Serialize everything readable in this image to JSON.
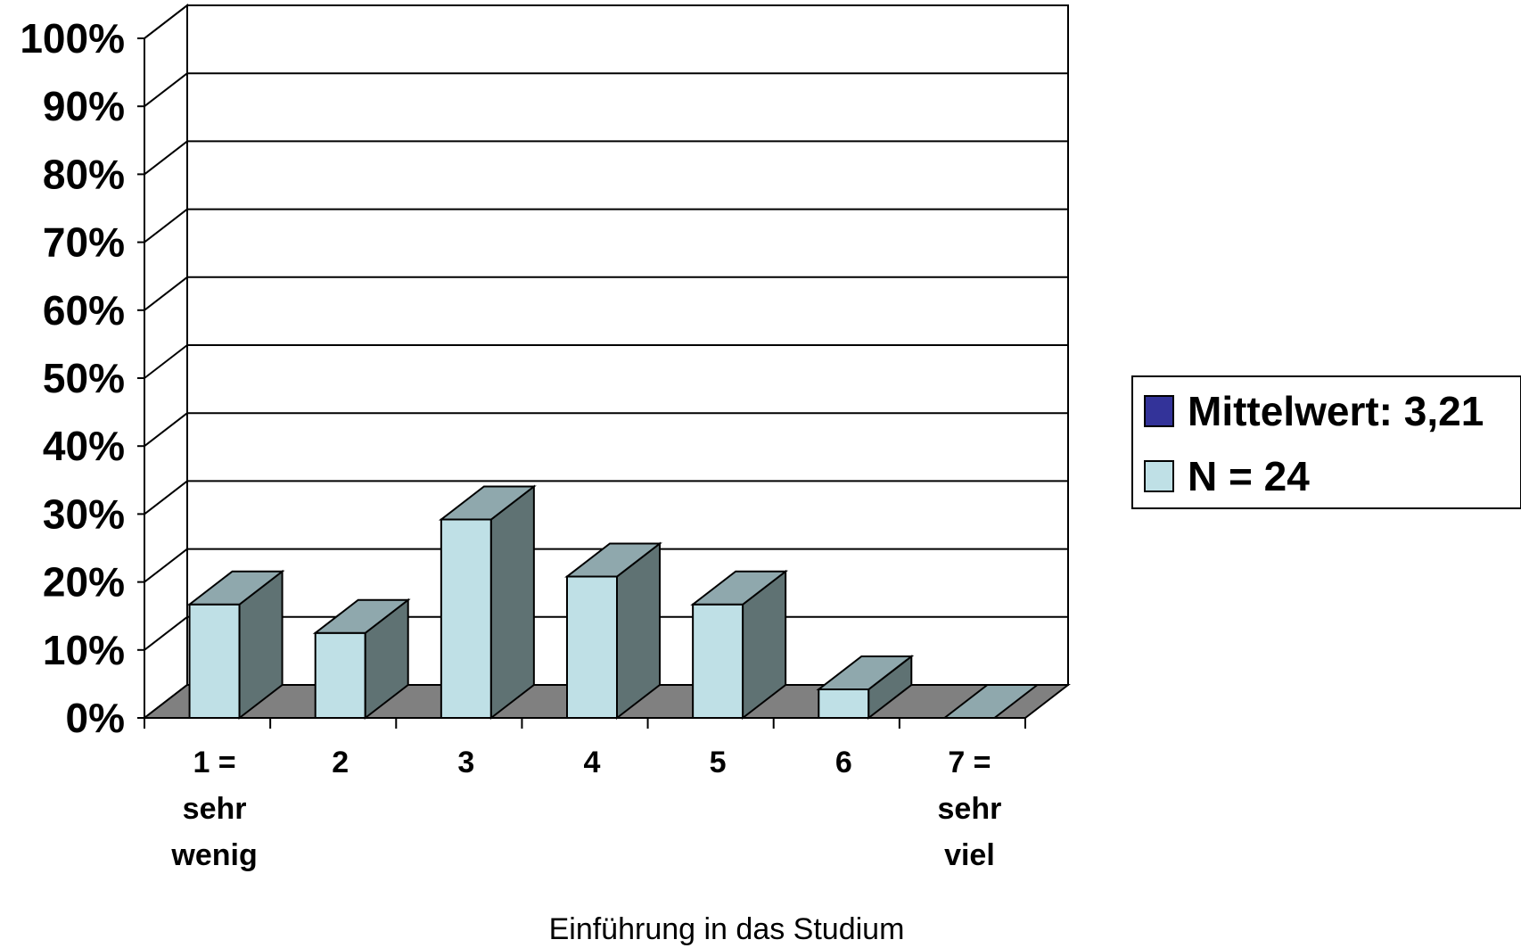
{
  "chart_data": {
    "type": "bar",
    "style": "3d",
    "categories": [
      [
        "1 =",
        "sehr",
        "wenig"
      ],
      [
        "2"
      ],
      [
        "3"
      ],
      [
        "4"
      ],
      [
        "5"
      ],
      [
        "6"
      ],
      [
        "7 =",
        "sehr",
        "viel"
      ]
    ],
    "values": [
      16.7,
      12.5,
      29.2,
      20.8,
      16.7,
      4.2,
      0
    ],
    "ylim": [
      0,
      100
    ],
    "yticks": [
      "0%",
      "10%",
      "20%",
      "30%",
      "40%",
      "50%",
      "60%",
      "70%",
      "80%",
      "90%",
      "100%"
    ],
    "xlabel": "Einführung in das Studium",
    "ylabel": "",
    "grid": true,
    "legend_position": "right",
    "legend": [
      {
        "label": "Mittelwert: 3,21",
        "color": "#333399"
      },
      {
        "label": "N = 24",
        "color": "#bfe0e6"
      }
    ],
    "colors": {
      "bar_front": "#bfe0e6",
      "bar_top": "#8fa8ad",
      "bar_side": "#5f7273",
      "floor": "#808080"
    }
  }
}
